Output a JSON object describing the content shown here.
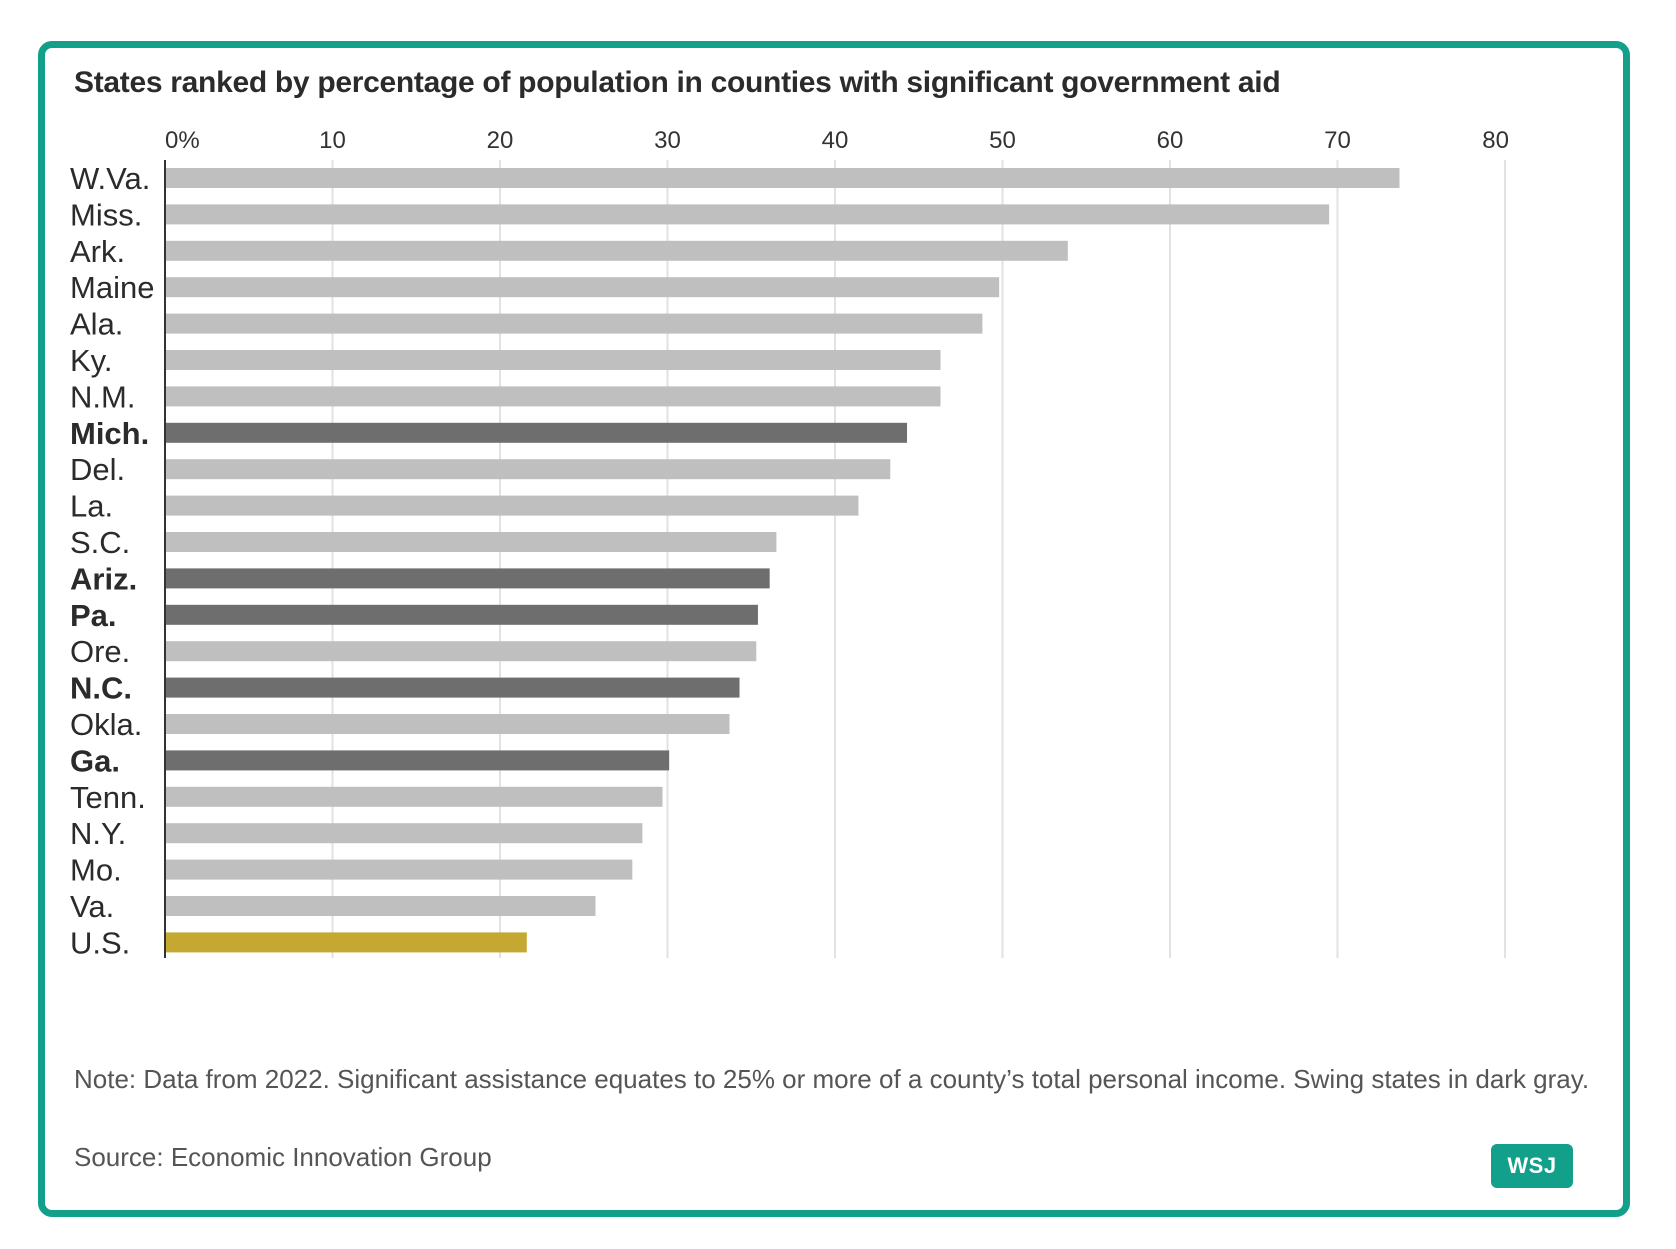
{
  "chart_data": {
    "type": "bar",
    "orientation": "horizontal",
    "title": "States ranked by percentage of population in counties with significant government aid",
    "xlim": [
      0,
      80
    ],
    "x_ticks": [
      "0%",
      "10",
      "20",
      "30",
      "40",
      "50",
      "60",
      "70",
      "80"
    ],
    "grid": "vertical",
    "categories": [
      "W.Va.",
      "Miss.",
      "Ark.",
      "Maine",
      "Ala.",
      "Ky.",
      "N.M.",
      "Mich.",
      "Del.",
      "La.",
      "S.C.",
      "Ariz.",
      "Pa.",
      "Ore.",
      "N.C.",
      "Okla.",
      "Ga.",
      "Tenn.",
      "N.Y.",
      "Mo.",
      "Va.",
      "U.S."
    ],
    "values": [
      73.7,
      69.5,
      53.9,
      49.8,
      48.8,
      46.3,
      46.3,
      44.3,
      43.3,
      41.4,
      36.5,
      36.1,
      35.4,
      35.3,
      34.3,
      33.7,
      30.1,
      29.7,
      28.5,
      27.9,
      25.7,
      21.6
    ],
    "groups": [
      "other",
      "other",
      "other",
      "other",
      "other",
      "other",
      "other",
      "swing",
      "other",
      "other",
      "other",
      "swing",
      "swing",
      "other",
      "swing",
      "other",
      "swing",
      "other",
      "other",
      "other",
      "other",
      "national"
    ],
    "colors": {
      "other": "#bfbfbf",
      "swing": "#6e6e6e",
      "national": "#c4a832",
      "grid": "#e2e2e2",
      "axis": "#333333"
    }
  },
  "footer": {
    "note": "Note: Data from 2022. Significant assistance equates to 25% or more of a county’s total personal income. Swing states in dark gray.",
    "source": "Source: Economic Innovation Group",
    "logo": "WSJ"
  }
}
